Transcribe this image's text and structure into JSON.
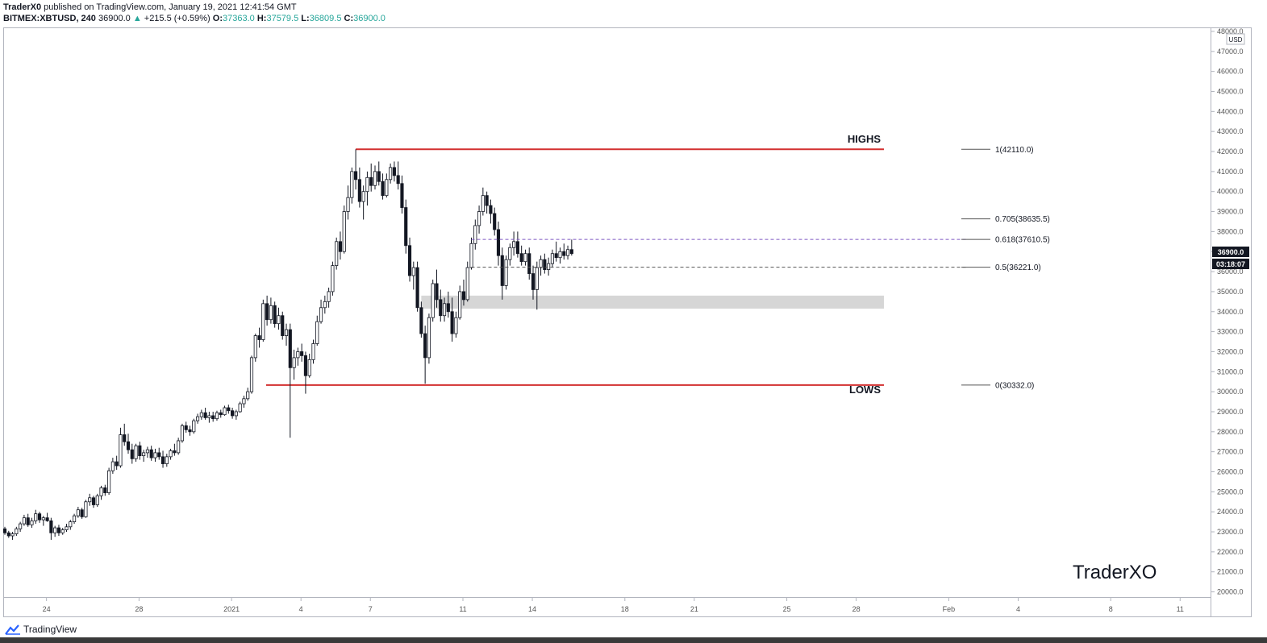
{
  "header": {
    "author": "TraderX0",
    "published_text": "published on TradingView.com, January 19, 2021 12:41:54 GMT",
    "symbol": "BITMEX:XBTUSD, 240",
    "last": "36900.0",
    "change": "+215.5 (+0.59%)",
    "o_label": "O:",
    "o_value": "37363.0",
    "h_label": "H:",
    "h_value": "37579.5",
    "l_label": "L:",
    "l_value": "36809.5",
    "c_label": "C:",
    "c_value": "36900.0"
  },
  "colors": {
    "up": "#26a69a",
    "level_line": "#d32f2f",
    "zone": "#d6d6d6",
    "candle": "#131722"
  },
  "price_axis": {
    "currency": "USD",
    "current_price": "36900.0",
    "countdown": "03:18:07"
  },
  "annotations": {
    "highs_label": "HIGHS",
    "lows_label": "LOWS",
    "watermark": "TraderXO"
  },
  "footer": {
    "brand": "TradingView"
  },
  "chart_data": {
    "type": "candlestick",
    "y_range": [
      19700,
      48200
    ],
    "y_ticks": [
      20000,
      21000,
      22000,
      23000,
      24000,
      25000,
      26000,
      27000,
      28000,
      29000,
      30000,
      31000,
      32000,
      33000,
      34000,
      35000,
      36000,
      37000,
      38000,
      39000,
      40000,
      41000,
      42000,
      43000,
      44000,
      45000,
      46000,
      47000,
      48000
    ],
    "y_tick_labels": [
      "20000.0",
      "21000.0",
      "22000.0",
      "23000.0",
      "24000.0",
      "25000.0",
      "26000.0",
      "27000.0",
      "28000.0",
      "29000.0",
      "30000.0",
      "31000.0",
      "32000.0",
      "33000.0",
      "34000.0",
      "35000.0",
      "36000.0",
      "37000.0",
      "38000.0",
      "39000.0",
      "40000.0",
      "41000.0",
      "42000.0",
      "43000.0",
      "44000.0",
      "45000.0",
      "46000.0",
      "47000.0",
      "48000.0"
    ],
    "x_labels": [
      {
        "label": "24",
        "day": -8
      },
      {
        "label": "28",
        "day": -4
      },
      {
        "label": "2021",
        "day": 0
      },
      {
        "label": "4",
        "day": 3
      },
      {
        "label": "7",
        "day": 6
      },
      {
        "label": "11",
        "day": 10
      },
      {
        "label": "14",
        "day": 13
      },
      {
        "label": "18",
        "day": 17
      },
      {
        "label": "21",
        "day": 20
      },
      {
        "label": "25",
        "day": 24
      },
      {
        "label": "28",
        "day": 27
      },
      {
        "label": "Feb",
        "day": 31
      },
      {
        "label": "4",
        "day": 34
      },
      {
        "label": "8",
        "day": 38
      },
      {
        "label": "11",
        "day": 41
      }
    ],
    "x_range_days": [
      -9.87,
      42.35
    ],
    "highs_level": 42110,
    "lows_level": 30332,
    "zone": [
      34150,
      34800
    ],
    "fib_levels": [
      {
        "label": "1(42110.0)",
        "value": 42110
      },
      {
        "label": "0.705(38635.5)",
        "value": 38635.5
      },
      {
        "label": "0.618(37610.5)",
        "value": 37610.5
      },
      {
        "label": "0.5(36221.0)",
        "value": 36221
      },
      {
        "label": "0(30332.0)",
        "value": 30332
      }
    ],
    "candles_4h": [
      [
        23150,
        23250,
        22850,
        22950
      ],
      [
        22950,
        23050,
        22700,
        22800
      ],
      [
        22800,
        23000,
        22600,
        22900
      ],
      [
        22900,
        23250,
        22800,
        23150
      ],
      [
        23150,
        23500,
        23000,
        23400
      ],
      [
        23400,
        23850,
        23300,
        23700
      ],
      [
        23700,
        23900,
        23250,
        23350
      ],
      [
        23350,
        23700,
        23200,
        23550
      ],
      [
        23550,
        24100,
        23400,
        23900
      ],
      [
        23900,
        24000,
        23450,
        23600
      ],
      [
        23600,
        23800,
        23300,
        23700
      ],
      [
        23700,
        23950,
        23500,
        23550
      ],
      [
        23550,
        23700,
        22600,
        22950
      ],
      [
        22950,
        23300,
        22750,
        23200
      ],
      [
        23200,
        23350,
        22800,
        22950
      ],
      [
        22950,
        23200,
        22850,
        23100
      ],
      [
        23100,
        23400,
        23000,
        23250
      ],
      [
        23250,
        23600,
        23100,
        23500
      ],
      [
        23500,
        23900,
        23400,
        23800
      ],
      [
        23800,
        24250,
        23700,
        24100
      ],
      [
        24100,
        24200,
        23650,
        23750
      ],
      [
        23750,
        24600,
        23700,
        24500
      ],
      [
        24500,
        24900,
        24300,
        24700
      ],
      [
        24700,
        24800,
        24200,
        24350
      ],
      [
        24350,
        24900,
        24250,
        24800
      ],
      [
        24800,
        25300,
        24600,
        25200
      ],
      [
        25200,
        25350,
        24800,
        24950
      ],
      [
        24950,
        26200,
        24850,
        26050
      ],
      [
        26050,
        26700,
        25900,
        26500
      ],
      [
        26500,
        26800,
        26100,
        26300
      ],
      [
        26300,
        28200,
        26200,
        27850
      ],
      [
        27850,
        28400,
        27300,
        27500
      ],
      [
        27500,
        27900,
        26900,
        27100
      ],
      [
        27100,
        27400,
        26400,
        26650
      ],
      [
        26650,
        27400,
        26500,
        27300
      ],
      [
        27300,
        27500,
        26600,
        26800
      ],
      [
        26800,
        27100,
        26500,
        26950
      ],
      [
        26950,
        27250,
        26700,
        27100
      ],
      [
        27100,
        27300,
        26550,
        26700
      ],
      [
        26700,
        27150,
        26500,
        26950
      ],
      [
        26950,
        27200,
        26600,
        26750
      ],
      [
        26750,
        27050,
        26200,
        26400
      ],
      [
        26400,
        26900,
        26250,
        26750
      ],
      [
        26750,
        27150,
        26600,
        27050
      ],
      [
        27050,
        27400,
        26800,
        26950
      ],
      [
        26950,
        27700,
        26850,
        27550
      ],
      [
        27550,
        28400,
        27450,
        28300
      ],
      [
        28300,
        28500,
        27950,
        28100
      ],
      [
        28100,
        28300,
        27800,
        28000
      ],
      [
        28000,
        28650,
        27900,
        28550
      ],
      [
        28550,
        28900,
        28400,
        28750
      ],
      [
        28750,
        29100,
        28600,
        28950
      ],
      [
        28950,
        29200,
        28600,
        28700
      ],
      [
        28700,
        29000,
        28450,
        28800
      ],
      [
        28800,
        29000,
        28500,
        28650
      ],
      [
        28650,
        29050,
        28550,
        28950
      ],
      [
        28950,
        29100,
        28700,
        28850
      ],
      [
        28850,
        29300,
        28800,
        29200
      ],
      [
        29200,
        29350,
        28900,
        29050
      ],
      [
        29050,
        29200,
        28650,
        28800
      ],
      [
        28800,
        29100,
        28600,
        29000
      ],
      [
        29000,
        29500,
        28950,
        29400
      ],
      [
        29400,
        29800,
        29200,
        29650
      ],
      [
        29650,
        30200,
        29550,
        30000
      ],
      [
        30000,
        31800,
        29900,
        31700
      ],
      [
        31700,
        32900,
        31500,
        32800
      ],
      [
        32800,
        33200,
        32200,
        32600
      ],
      [
        32600,
        34600,
        32500,
        34400
      ],
      [
        34400,
        34800,
        33300,
        33600
      ],
      [
        33600,
        34700,
        33400,
        34300
      ],
      [
        34300,
        34500,
        33200,
        33400
      ],
      [
        33400,
        34200,
        33100,
        33800
      ],
      [
        33800,
        34000,
        32600,
        32800
      ],
      [
        32800,
        33400,
        32300,
        33100
      ],
      [
        33100,
        33400,
        27700,
        31200
      ],
      [
        31200,
        32100,
        30600,
        31700
      ],
      [
        31700,
        32200,
        31300,
        32000
      ],
      [
        32000,
        32400,
        31500,
        31800
      ],
      [
        31800,
        32000,
        29900,
        30800
      ],
      [
        30800,
        31900,
        30700,
        31600
      ],
      [
        31600,
        32600,
        31400,
        32400
      ],
      [
        32400,
        33800,
        32300,
        33500
      ],
      [
        33500,
        34600,
        33400,
        34200
      ],
      [
        34200,
        34800,
        33900,
        34500
      ],
      [
        34500,
        35200,
        34200,
        35000
      ],
      [
        35000,
        36500,
        34800,
        36300
      ],
      [
        36300,
        37700,
        36100,
        37500
      ],
      [
        37500,
        38000,
        36600,
        37000
      ],
      [
        37000,
        39300,
        36900,
        39000
      ],
      [
        39000,
        40300,
        38600,
        39700
      ],
      [
        39700,
        41200,
        39400,
        41000
      ],
      [
        41000,
        42110,
        40100,
        40600
      ],
      [
        40600,
        41200,
        39200,
        39500
      ],
      [
        39500,
        40300,
        38600,
        40000
      ],
      [
        40000,
        41000,
        39300,
        40700
      ],
      [
        40700,
        41400,
        40000,
        40300
      ],
      [
        40300,
        41300,
        40100,
        41000
      ],
      [
        41000,
        41500,
        40300,
        40500
      ],
      [
        40500,
        40900,
        39600,
        39800
      ],
      [
        39800,
        40900,
        39700,
        40600
      ],
      [
        40600,
        41400,
        40400,
        41200
      ],
      [
        41200,
        41500,
        40500,
        40800
      ],
      [
        40800,
        41500,
        40100,
        40400
      ],
      [
        40400,
        40800,
        38900,
        39200
      ],
      [
        39200,
        39600,
        36900,
        37300
      ],
      [
        37300,
        37700,
        35500,
        35800
      ],
      [
        35800,
        36500,
        35100,
        36200
      ],
      [
        36200,
        36500,
        34000,
        34200
      ],
      [
        34200,
        34500,
        32700,
        32900
      ],
      [
        32900,
        33300,
        30400,
        31700
      ],
      [
        31700,
        33900,
        31400,
        33700
      ],
      [
        33700,
        35600,
        33500,
        35400
      ],
      [
        35400,
        36100,
        34200,
        34600
      ],
      [
        34600,
        35100,
        33500,
        33800
      ],
      [
        33800,
        34700,
        33500,
        34400
      ],
      [
        34400,
        35000,
        33700,
        34000
      ],
      [
        34000,
        34700,
        32500,
        32900
      ],
      [
        32900,
        34000,
        32700,
        33700
      ],
      [
        33700,
        35300,
        33600,
        35000
      ],
      [
        35000,
        35600,
        34300,
        34600
      ],
      [
        34600,
        36500,
        34500,
        36200
      ],
      [
        36200,
        37700,
        36100,
        37400
      ],
      [
        37400,
        38600,
        37100,
        38300
      ],
      [
        38300,
        39300,
        37900,
        39000
      ],
      [
        39000,
        40200,
        38800,
        39800
      ],
      [
        39800,
        40000,
        38900,
        39300
      ],
      [
        39300,
        39600,
        38400,
        38900
      ],
      [
        38900,
        39200,
        37800,
        38100
      ],
      [
        38100,
        38500,
        36300,
        36800
      ],
      [
        36800,
        37200,
        34600,
        35300
      ],
      [
        35300,
        36800,
        35100,
        36600
      ],
      [
        36600,
        37400,
        36300,
        37200
      ],
      [
        37200,
        38000,
        36800,
        37500
      ],
      [
        37500,
        38000,
        36700,
        36900
      ],
      [
        36900,
        37300,
        36300,
        36500
      ],
      [
        36500,
        37100,
        36300,
        36900
      ],
      [
        36900,
        37200,
        35600,
        35900
      ],
      [
        35900,
        36300,
        34600,
        35100
      ],
      [
        35100,
        36500,
        34100,
        36200
      ],
      [
        36200,
        36800,
        35800,
        36600
      ],
      [
        36600,
        36900,
        35900,
        36100
      ],
      [
        36100,
        36700,
        35800,
        36400
      ],
      [
        36400,
        37100,
        36200,
        36900
      ],
      [
        36900,
        37500,
        36500,
        36700
      ],
      [
        36700,
        37200,
        36400,
        37000
      ],
      [
        37000,
        37400,
        36600,
        36800
      ],
      [
        36800,
        37300,
        36600,
        37100
      ],
      [
        37100,
        37600,
        36800,
        36900
      ]
    ]
  }
}
